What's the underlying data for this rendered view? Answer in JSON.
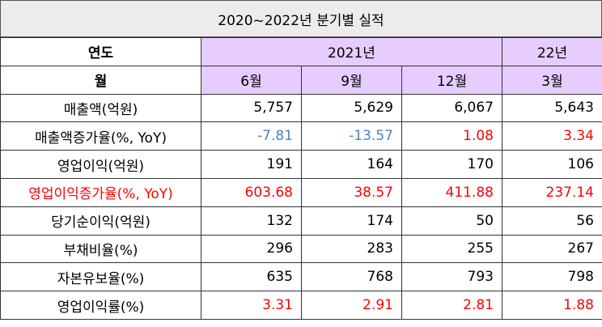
{
  "title": "2020~2022년 분기별 실적",
  "header": {
    "year_label": "연도",
    "years": [
      "2021년",
      "22년"
    ],
    "month_label": "월",
    "months": [
      "6월",
      "9월",
      "12월",
      "3월"
    ]
  },
  "rows": [
    {
      "label": "매출액(억원)",
      "values": [
        "5,757",
        "5,629",
        "6,067",
        "5,643"
      ],
      "label_color": "#000000",
      "colors": [
        "#000000",
        "#000000",
        "#000000",
        "#000000"
      ]
    },
    {
      "label": "매출액증가율(%, YoY)",
      "values": [
        "-7.81",
        "-13.57",
        "1.08",
        "3.34"
      ],
      "label_color": "#000000",
      "colors": [
        "#4f81bd",
        "#4f81bd",
        "#ff0000",
        "#ff0000"
      ]
    },
    {
      "label": "영업이익(억원)",
      "values": [
        "191",
        "164",
        "170",
        "106"
      ],
      "label_color": "#000000",
      "colors": [
        "#000000",
        "#000000",
        "#000000",
        "#000000"
      ]
    },
    {
      "label": "영업이익증가율(%, YoY)",
      "values": [
        "603.68",
        "38.57",
        "411.88",
        "237.14"
      ],
      "label_color": "#ff0000",
      "colors": [
        "#ff0000",
        "#ff0000",
        "#ff0000",
        "#ff0000"
      ]
    },
    {
      "label": "당기순이익(억원)",
      "values": [
        "132",
        "174",
        "50",
        "56"
      ],
      "label_color": "#000000",
      "colors": [
        "#000000",
        "#000000",
        "#000000",
        "#000000"
      ]
    },
    {
      "label": "부채비율(%)",
      "values": [
        "296",
        "283",
        "255",
        "267"
      ],
      "label_color": "#000000",
      "colors": [
        "#000000",
        "#000000",
        "#000000",
        "#000000"
      ]
    },
    {
      "label": "자본유보율(%)",
      "values": [
        "635",
        "768",
        "793",
        "798"
      ],
      "label_color": "#000000",
      "colors": [
        "#000000",
        "#000000",
        "#000000",
        "#000000"
      ]
    },
    {
      "label": "영업이익률(%)",
      "values": [
        "3.31",
        "2.91",
        "2.81",
        "1.88"
      ],
      "label_color": "#000000",
      "colors": [
        "#ff0000",
        "#ff0000",
        "#ff0000",
        "#ff0000"
      ]
    }
  ]
}
